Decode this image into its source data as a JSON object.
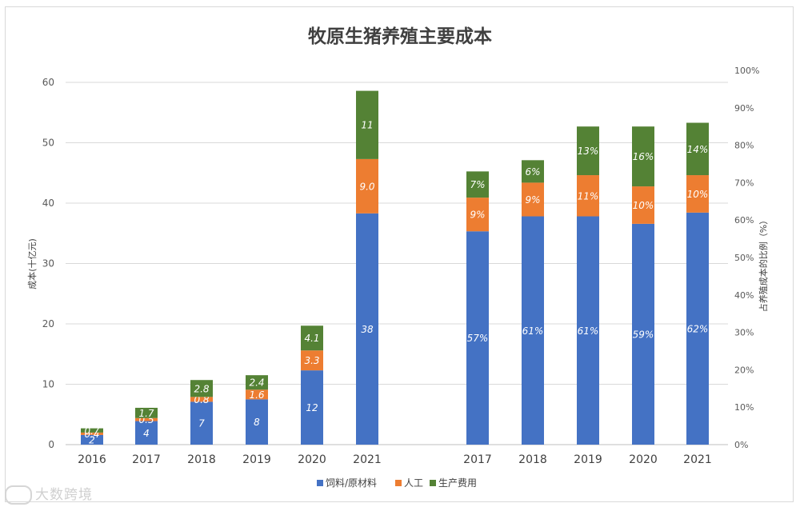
{
  "chart_data": {
    "type": "bar",
    "stacked": true,
    "title": "牧原生猪养殖主要成本",
    "left_axis": {
      "label": "成本(十亿元)",
      "ylim": [
        0,
        60
      ],
      "ticks": [
        "0",
        "10",
        "20",
        "30",
        "40",
        "50",
        "60"
      ]
    },
    "right_axis": {
      "label": "占养殖成本的比例（%）",
      "ylim": [
        0,
        100
      ],
      "ticks": [
        "0%",
        "10%",
        "20%",
        "30%",
        "40%",
        "50%",
        "60%",
        "70%",
        "80%",
        "90%",
        "100%"
      ]
    },
    "legend_position": "bottom",
    "series": [
      {
        "name": "饲料/原材料",
        "color": "#4472c4"
      },
      {
        "name": "人工",
        "color": "#ed7d31"
      },
      {
        "name": "生产费用",
        "color": "#548235"
      }
    ],
    "absolute": {
      "categories": [
        "2016",
        "2017",
        "2018",
        "2019",
        "2020",
        "2021"
      ],
      "values": [
        [
          1.6,
          3.9,
          7.1,
          7.5,
          12.3,
          38.3
        ],
        [
          0.4,
          0.5,
          0.8,
          1.6,
          3.3,
          9.0
        ],
        [
          0.7,
          1.7,
          2.8,
          2.4,
          4.1,
          11.3
        ]
      ],
      "labels": [
        [
          "2",
          "4",
          "7",
          "8",
          "12",
          "38"
        ],
        [
          "0.4",
          "0.5",
          "0.8",
          "1.6",
          "3.3",
          "9.0"
        ],
        [
          "0.7",
          "1.7",
          "2.8",
          "2.4",
          "4.1",
          "11"
        ]
      ]
    },
    "percent": {
      "categories": [
        "2017",
        "2018",
        "2019",
        "2020",
        "2021"
      ],
      "values": [
        [
          57,
          61,
          61,
          59,
          62
        ],
        [
          9,
          9,
          11,
          10,
          10
        ],
        [
          7,
          6,
          13,
          16,
          14
        ]
      ],
      "labels": [
        [
          "57%",
          "61%",
          "61%",
          "59%",
          "62%"
        ],
        [
          "9%",
          "9%",
          "11%",
          "10%",
          "10%"
        ],
        [
          "7%",
          "6%",
          "13%",
          "16%",
          "14%"
        ]
      ]
    }
  },
  "watermark": "大数跨境"
}
